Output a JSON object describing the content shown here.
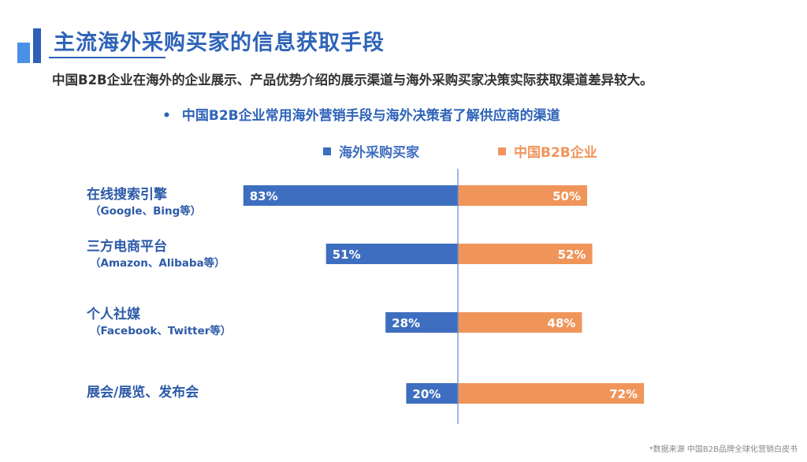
{
  "header": {
    "title": "主流海外采购买家的信息获取手段",
    "subtitle": "中国B2B企业在海外的企业展示、产品优势介绍的展示渠道与海外采购买家决策实际获取渠道差异较大。",
    "chart_heading": "中国B2B企业常用海外营销手段与海外决策者了解供应商的渠道"
  },
  "footer": {
    "source": "*数据来源  中国B2B品牌全球化营销白皮书"
  },
  "colors": {
    "accent": "#2e63b8",
    "buyers": "#3e6ebf",
    "enterprises": "#f0955a",
    "axis": "#5b8bd0"
  },
  "chart_data": {
    "type": "bar",
    "orientation": "horizontal-diverging",
    "categories": [
      {
        "label": "在线搜索引擎",
        "sublabel": "（Google、Bing等）"
      },
      {
        "label": "三方电商平台",
        "sublabel": "（Amazon、Alibaba等）"
      },
      {
        "label": "个人社媒",
        "sublabel": "（Facebook、Twitter等）"
      },
      {
        "label": "展会/展览、发布会",
        "sublabel": ""
      }
    ],
    "series": [
      {
        "name": "海外采购买家",
        "color": "#3e6ebf",
        "values": [
          83,
          51,
          28,
          20
        ],
        "labels": [
          "83%",
          "51%",
          "28%",
          "20%"
        ],
        "side": "left"
      },
      {
        "name": "中国B2B企业",
        "color": "#f0955a",
        "values": [
          50,
          52,
          48,
          72
        ],
        "labels": [
          "50%",
          "52%",
          "48%",
          "72%"
        ],
        "side": "right"
      }
    ],
    "unit": "%",
    "legend_position": "top"
  }
}
